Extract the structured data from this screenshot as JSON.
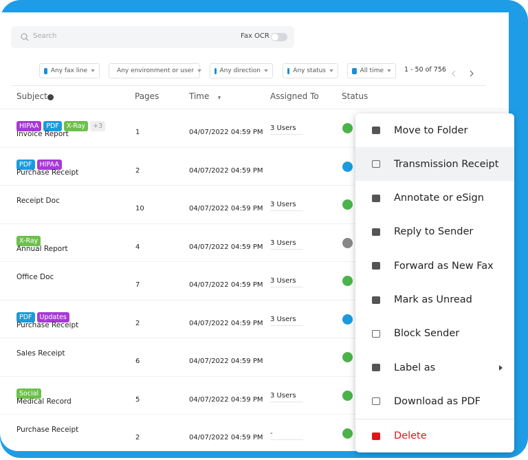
{
  "search": {
    "placeholder": "Search",
    "toggle_label": "Fax OCR"
  },
  "filters": [
    "Any fax line",
    "Any environment or user",
    "Any direction",
    "Any status",
    "All time"
  ],
  "pagination": "1 - 50 of 756",
  "table": {
    "columns": [
      "Subject",
      "Pages",
      "Time",
      "Assigned To",
      "Status"
    ],
    "rows": [
      {
        "tags": [
          {
            "text": "HIPAA",
            "color": "#a838d8"
          },
          {
            "text": "PDF",
            "color": "#1a9be0"
          },
          {
            "text": "X-Ray",
            "color": "#6cc04a"
          },
          {
            "text": "+3",
            "color": "#eeeeee"
          }
        ],
        "subject": "Invoice Report",
        "pages": "1",
        "time": "04/07/2022 04:59 PM",
        "assigned": "3 Users",
        "status_color": "#4cb34c"
      },
      {
        "tags": [
          {
            "text": "PDF",
            "color": "#1a9be0"
          },
          {
            "text": "HIPAA",
            "color": "#a838d8"
          }
        ],
        "subject": "Purchase Receipt",
        "pages": "2",
        "time": "04/07/2022 04:59 PM",
        "assigned": "",
        "status_color": "#1a9be0"
      },
      {
        "tags": [],
        "subject": "Receipt Doc",
        "pages": "10",
        "time": "04/07/2022 04:59 PM",
        "assigned": "3 Users",
        "status_color": "#4cb34c"
      },
      {
        "tags": [
          {
            "text": "X-Ray",
            "color": "#6cc04a"
          }
        ],
        "subject": "Annual Report",
        "pages": "4",
        "time": "04/07/2022 04:59 PM",
        "assigned": "3 Users",
        "status_color": "#888888"
      },
      {
        "tags": [],
        "subject": "Office Doc",
        "pages": "7",
        "time": "04/07/2022 04:59 PM",
        "assigned": "3 Users",
        "status_color": "#4cb34c"
      },
      {
        "tags": [
          {
            "text": "PDF",
            "color": "#1a9be0"
          },
          {
            "text": "Updates",
            "color": "#a838d8"
          }
        ],
        "subject": "Purchase Receipt",
        "pages": "2",
        "time": "04/07/2022 04:59 PM",
        "assigned": "3 Users",
        "status_color": "#1a9be0"
      },
      {
        "tags": [],
        "subject": "Sales Receipt",
        "pages": "6",
        "time": "04/07/2022 04:59 PM",
        "assigned": "",
        "status_color": "#4cb34c"
      },
      {
        "tags": [
          {
            "text": "Social",
            "color": "#6cc04a"
          }
        ],
        "subject": "Medical Record",
        "pages": "5",
        "time": "04/07/2022 04:59 PM",
        "assigned": "3 Users",
        "status_color": "#4cb34c"
      },
      {
        "tags": [],
        "subject": "Purchase Receipt",
        "pages": "2",
        "time": "04/07/2022 04:59 PM",
        "assigned": "-",
        "status_color": "#4cb34c"
      }
    ]
  },
  "menu": [
    "Move to Folder",
    "Transmission Receipt",
    "Annotate or eSign",
    "Reply to Sender",
    "Forward as New Fax",
    "Mark as Unread",
    "Block Sender",
    "Label as",
    "Download as PDF",
    "Delete"
  ]
}
